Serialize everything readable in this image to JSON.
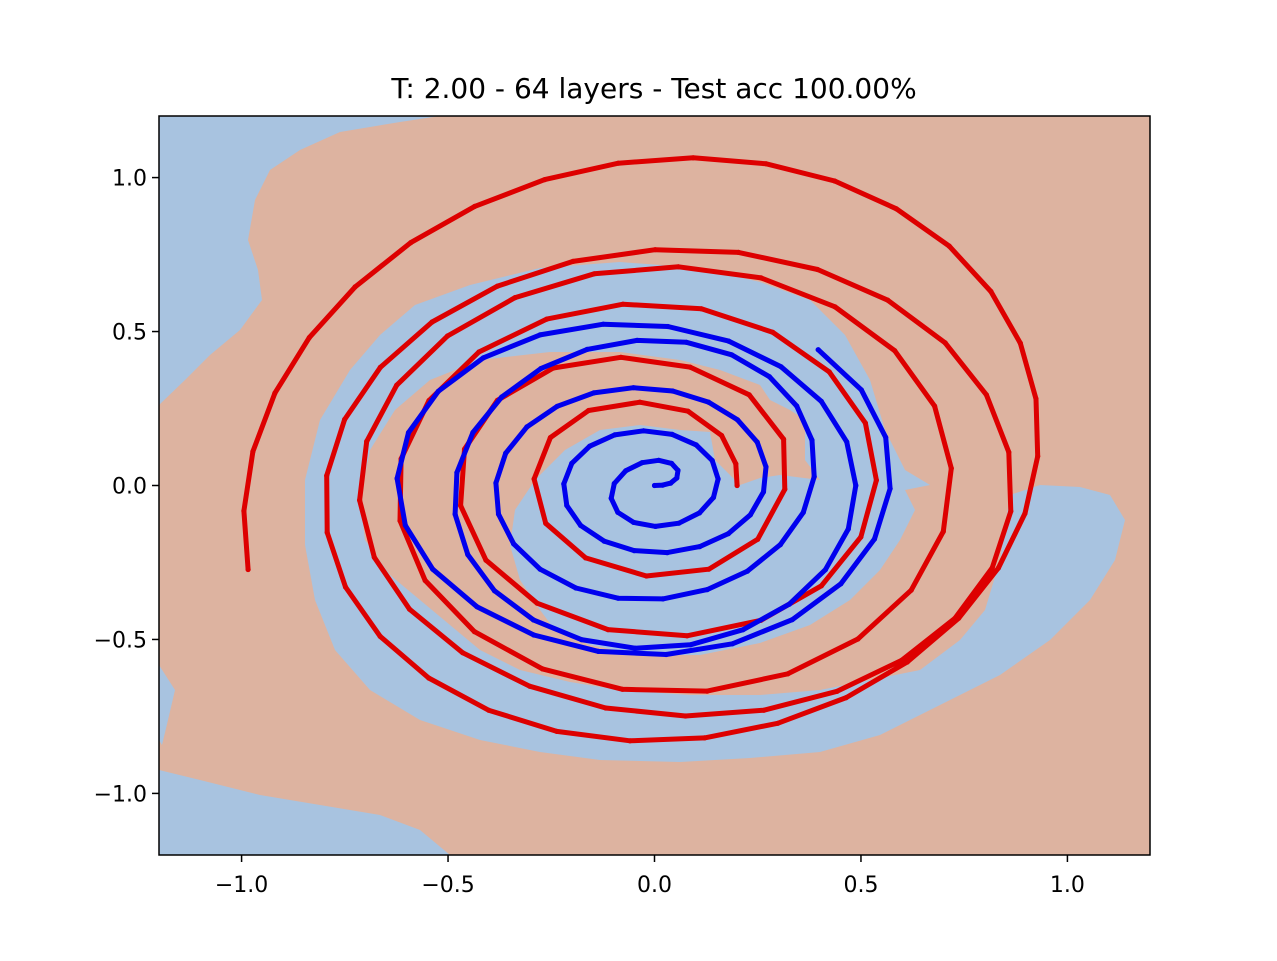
{
  "chart_data": {
    "type": "scatter",
    "title": "T: 2.00 - 64 layers - Test acc 100.00%",
    "xlabel": "",
    "ylabel": "",
    "xlim": [
      -1.2,
      1.2
    ],
    "ylim": [
      -1.2,
      1.2
    ],
    "x_ticks": [
      "−1.0",
      "−0.5",
      "0.0",
      "0.5",
      "1.0"
    ],
    "x_tick_values": [
      -1.0,
      -0.5,
      0.0,
      0.5,
      1.0
    ],
    "y_ticks": [
      "1.0",
      "0.5",
      "0.0",
      "−0.5",
      "−1.0"
    ],
    "y_tick_values": [
      1.0,
      0.5,
      0.0,
      -0.5,
      -1.0
    ],
    "grid": false,
    "legend": "none",
    "colors": {
      "region_red": "#ddb3a0",
      "region_blue": "#a8c3e0",
      "series_red": "#dd0000",
      "series_blue": "#0000ee"
    },
    "series": [
      {
        "color": "red",
        "points": [
          [
            0.2,
            0.0
          ],
          [
            0.1969,
            0.0704
          ],
          [
            0.1624,
            0.1624
          ],
          [
            0.0811,
            0.2414
          ],
          [
            -0.0357,
            0.2705
          ],
          [
            -0.1596,
            0.2435
          ],
          [
            -0.2521,
            0.1555
          ],
          [
            -0.2915,
            0.0212
          ],
          [
            -0.2635,
            -0.1227
          ],
          [
            -0.1669,
            -0.2352
          ],
          [
            -0.0197,
            -0.2939
          ],
          [
            0.1315,
            -0.2718
          ],
          [
            0.2499,
            -0.1746
          ],
          [
            0.3155,
            -0.0124
          ],
          [
            0.3127,
            0.1505
          ],
          [
            0.2294,
            0.2945
          ],
          [
            0.0863,
            0.3845
          ],
          [
            -0.0814,
            0.4162
          ],
          [
            -0.2452,
            0.3817
          ],
          [
            -0.3805,
            0.2767
          ],
          [
            -0.4602,
            0.1179
          ],
          [
            -0.4697,
            -0.0654
          ],
          [
            -0.4083,
            -0.2424
          ],
          [
            -0.2843,
            -0.3821
          ],
          [
            -0.1127,
            -0.4679
          ],
          [
            0.0789,
            -0.4881
          ],
          [
            0.2577,
            -0.4378
          ],
          [
            0.4041,
            -0.3258
          ],
          [
            0.4998,
            -0.1668
          ],
          [
            0.5374,
            0.0171
          ],
          [
            0.5107,
            0.2027
          ],
          [
            0.4232,
            0.3692
          ],
          [
            0.2859,
            0.4977
          ],
          [
            0.1137,
            0.5739
          ],
          [
            -0.0762,
            0.5887
          ],
          [
            -0.2611,
            0.5404
          ],
          [
            -0.4253,
            0.4334
          ],
          [
            -0.5461,
            0.2762
          ],
          [
            -0.6138,
            0.0867
          ],
          [
            -0.6163,
            -0.1144
          ],
          [
            -0.5556,
            -0.3083
          ],
          [
            -0.4361,
            -0.4745
          ],
          [
            -0.2713,
            -0.5957
          ],
          [
            -0.0774,
            -0.6619
          ],
          [
            0.1276,
            -0.6676
          ],
          [
            0.3231,
            -0.6115
          ],
          [
            0.4927,
            -0.4985
          ],
          [
            0.6216,
            -0.3401
          ],
          [
            0.6995,
            -0.1494
          ],
          [
            0.7187,
            0.0557
          ],
          [
            0.6783,
            0.2578
          ],
          [
            0.5817,
            0.4377
          ],
          [
            0.4372,
            0.5805
          ],
          [
            0.2582,
            0.6741
          ],
          [
            0.0582,
            0.7102
          ],
          [
            -0.1461,
            0.6875
          ],
          [
            -0.3375,
            0.6101
          ],
          [
            -0.5012,
            0.4856
          ],
          [
            -0.6244,
            0.3256
          ],
          [
            -0.697,
            0.1431
          ],
          [
            -0.7143,
            -0.0477
          ],
          [
            -0.6787,
            -0.2332
          ],
          [
            -0.5934,
            -0.4016
          ],
          [
            -0.4647,
            -0.5429
          ],
          [
            -0.3026,
            -0.6519
          ],
          [
            -0.1182,
            -0.7225
          ],
          [
            0.0751,
            -0.7485
          ],
          [
            0.2651,
            -0.7299
          ],
          [
            0.4423,
            -0.6684
          ],
          [
            0.599,
            -0.5674
          ],
          [
            0.7275,
            -0.4316
          ],
          [
            0.8179,
            -0.2677
          ],
          [
            0.8629,
            -0.0839
          ],
          [
            0.8581,
            0.1082
          ],
          [
            0.8039,
            0.2947
          ],
          [
            0.7041,
            0.4631
          ],
          [
            0.5651,
            0.6017
          ],
          [
            0.395,
            0.7016
          ],
          [
            0.2034,
            0.7571
          ],
          [
            0.0017,
            0.7658
          ],
          [
            -0.1973,
            0.7277
          ],
          [
            -0.3803,
            0.6476
          ],
          [
            -0.5385,
            0.5309
          ],
          [
            -0.664,
            0.3836
          ],
          [
            -0.7504,
            0.2144
          ],
          [
            -0.7938,
            0.0321
          ],
          [
            -0.7926,
            -0.1527
          ],
          [
            -0.7483,
            -0.3297
          ],
          [
            -0.6646,
            -0.4898
          ],
          [
            -0.5469,
            -0.6252
          ],
          [
            -0.4018,
            -0.7297
          ],
          [
            -0.2366,
            -0.7986
          ],
          [
            -0.0594,
            -0.829
          ],
          [
            0.1212,
            -0.8198
          ],
          [
            0.2983,
            -0.7722
          ],
          [
            0.4643,
            -0.6887
          ],
          [
            0.6123,
            -0.5732
          ],
          [
            0.7367,
            -0.431
          ],
          [
            0.8328,
            -0.268
          ],
          [
            0.8972,
            -0.0906
          ],
          [
            0.928,
            0.0948
          ],
          [
            0.924,
            0.2814
          ],
          [
            0.8858,
            0.4624
          ],
          [
            0.8148,
            0.63
          ],
          [
            0.7136,
            0.7774
          ],
          [
            0.5859,
            0.8986
          ],
          [
            0.4364,
            0.9889
          ],
          [
            0.2704,
            1.0447
          ],
          [
            0.0937,
            1.0642
          ],
          [
            -0.0876,
            1.0467
          ],
          [
            -0.266,
            0.9934
          ],
          [
            -0.4354,
            0.9063
          ],
          [
            -0.5902,
            0.7888
          ],
          [
            -0.7252,
            0.6451
          ],
          [
            -0.836,
            0.4803
          ],
          [
            -0.9193,
            0.3002
          ],
          [
            -0.9726,
            0.1105
          ],
          [
            -0.9944,
            -0.0824
          ],
          [
            -0.9842,
            -0.2728
          ]
        ]
      },
      {
        "color": "blue",
        "points": [
          [
            0.0,
            0.0
          ],
          [
            0.0198,
            0.0014
          ],
          [
            0.0392,
            0.0078
          ],
          [
            0.0541,
            0.0245
          ],
          [
            0.0569,
            0.0491
          ],
          [
            0.0414,
            0.0717
          ],
          [
            0.0102,
            0.0818
          ],
          [
            -0.0302,
            0.0741
          ],
          [
            -0.0697,
            0.0478
          ],
          [
            -0.0973,
            0.0065
          ],
          [
            -0.1049,
            -0.0415
          ],
          [
            -0.0888,
            -0.087
          ],
          [
            -0.0507,
            -0.1199
          ],
          [
            0.0024,
            -0.1329
          ],
          [
            0.059,
            -0.1224
          ],
          [
            0.109,
            -0.0891
          ],
          [
            0.1428,
            -0.0385
          ],
          [
            0.1541,
            0.0212
          ],
          [
            0.1398,
            0.0812
          ],
          [
            0.101,
            0.132
          ],
          [
            0.0429,
            0.1661
          ],
          [
            -0.0265,
            0.1776
          ],
          [
            -0.0963,
            0.1643
          ],
          [
            -0.1569,
            0.1276
          ],
          [
            -0.2002,
            0.072
          ],
          [
            -0.2197,
            0.0052
          ],
          [
            -0.2125,
            -0.065
          ],
          [
            -0.1789,
            -0.1295
          ],
          [
            -0.122,
            -0.1805
          ],
          [
            -0.0491,
            -0.2114
          ],
          [
            0.0311,
            -0.2178
          ],
          [
            0.1095,
            -0.1985
          ],
          [
            0.179,
            -0.1563
          ],
          [
            0.2323,
            -0.0951
          ],
          [
            0.264,
            -0.0207
          ],
          [
            0.2701,
            0.0604
          ],
          [
            0.2487,
            0.141
          ],
          [
            0.2011,
            0.2134
          ],
          [
            0.1307,
            0.2707
          ],
          [
            0.044,
            0.3069
          ],
          [
            -0.0511,
            0.3177
          ],
          [
            -0.147,
            0.3008
          ],
          [
            -0.2356,
            0.2573
          ],
          [
            -0.309,
            0.1903
          ],
          [
            -0.3603,
            0.105
          ],
          [
            -0.3841,
            0.008
          ],
          [
            -0.3778,
            -0.0929
          ],
          [
            -0.3413,
            -0.1892
          ],
          [
            -0.277,
            -0.2719
          ],
          [
            -0.1903,
            -0.3328
          ],
          [
            -0.0883,
            -0.3661
          ],
          [
            0.0203,
            -0.3683
          ],
          [
            0.1277,
            -0.3382
          ],
          [
            0.2252,
            -0.2779
          ],
          [
            0.3049,
            -0.192
          ],
          [
            0.3603,
            -0.0872
          ],
          [
            0.3867,
            0.0286
          ],
          [
            0.3815,
            0.147
          ],
          [
            0.3445,
            0.2583
          ],
          [
            0.2782,
            0.3535
          ],
          [
            0.1869,
            0.4245
          ],
          [
            0.0774,
            0.465
          ],
          [
            -0.0425,
            0.4712
          ],
          [
            -0.1632,
            0.4421
          ],
          [
            -0.2753,
            0.3796
          ],
          [
            -0.37,
            0.2874
          ],
          [
            -0.4397,
            0.172
          ],
          [
            -0.4785,
            0.0418
          ],
          [
            -0.483,
            -0.0933
          ],
          [
            -0.4521,
            -0.2245
          ],
          [
            -0.3874,
            -0.3419
          ],
          [
            -0.2934,
            -0.4365
          ],
          [
            -0.177,
            -0.5004
          ],
          [
            -0.0469,
            -0.5283
          ],
          [
            0.0869,
            -0.5175
          ],
          [
            0.2146,
            -0.4684
          ],
          [
            0.3267,
            -0.3851
          ],
          [
            0.414,
            -0.2733
          ],
          [
            0.4694,
            -0.1413
          ],
          [
            0.4874,
            0.0001
          ],
          [
            0.4654,
            0.1418
          ],
          [
            0.404,
            0.2736
          ],
          [
            0.3066,
            0.3856
          ],
          [
            0.1798,
            0.469
          ],
          [
            0.0325,
            0.5165
          ],
          [
            -0.124,
            0.5237
          ],
          [
            -0.2772,
            0.489
          ],
          [
            -0.4143,
            0.4146
          ],
          [
            -0.5237,
            0.306
          ],
          [
            -0.5957,
            0.1717
          ],
          [
            -0.6234,
            0.0226
          ],
          [
            -0.6036,
            -0.1293
          ],
          [
            -0.5372,
            -0.2718
          ],
          [
            -0.4302,
            -0.3937
          ],
          [
            -0.2922,
            -0.4854
          ],
          [
            -0.1359,
            -0.5388
          ],
          [
            0.0282,
            -0.549
          ],
          [
            0.1887,
            -0.5142
          ],
          [
            0.3335,
            -0.4359
          ],
          [
            0.4515,
            -0.3193
          ],
          [
            0.5329,
            -0.1736
          ],
          [
            0.5705,
            -0.0101
          ],
          [
            0.56,
            0.1563
          ],
          [
            0.5008,
            0.3108
          ],
          [
            0.3965,
            0.4409
          ]
        ]
      }
    ]
  }
}
